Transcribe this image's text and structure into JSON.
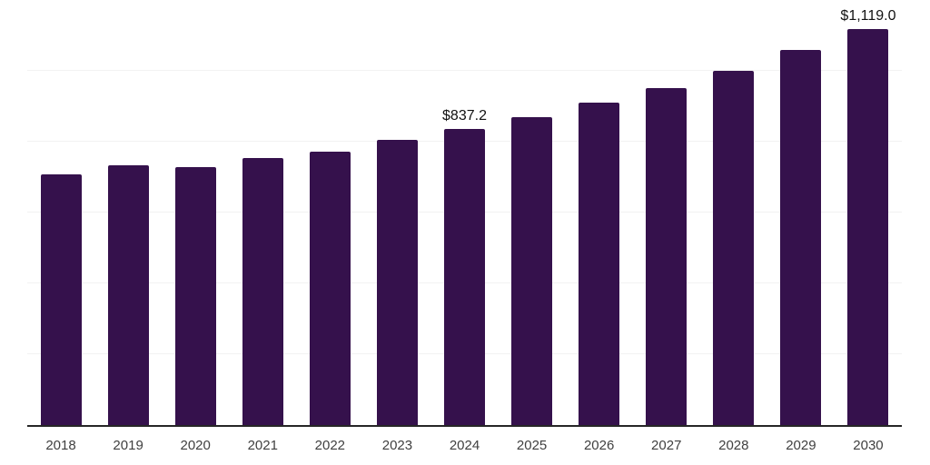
{
  "chart_data": {
    "type": "bar",
    "title": "",
    "xlabel": "",
    "ylabel": "",
    "categories": [
      "2018",
      "2019",
      "2020",
      "2021",
      "2022",
      "2023",
      "2024",
      "2025",
      "2026",
      "2027",
      "2028",
      "2029",
      "2030"
    ],
    "values": [
      707.0,
      732.5,
      727.5,
      755.0,
      772.0,
      805.0,
      837.2,
      870.5,
      911.0,
      952.0,
      1000.5,
      1059.5,
      1119.0
    ],
    "data_labels": {
      "2024": "$837.2",
      "2030": "$1,119.0"
    },
    "ylim": [
      0,
      1200
    ],
    "gridline_values": [
      200,
      400,
      600,
      800,
      1000,
      1200
    ],
    "grid": true,
    "legend": false,
    "colors": {
      "bar": "#35114c",
      "axis_line": "#262626",
      "gridline": "#f2f2f2",
      "tick_label": "#404040",
      "data_label": "#111111",
      "background": "#ffffff"
    }
  }
}
